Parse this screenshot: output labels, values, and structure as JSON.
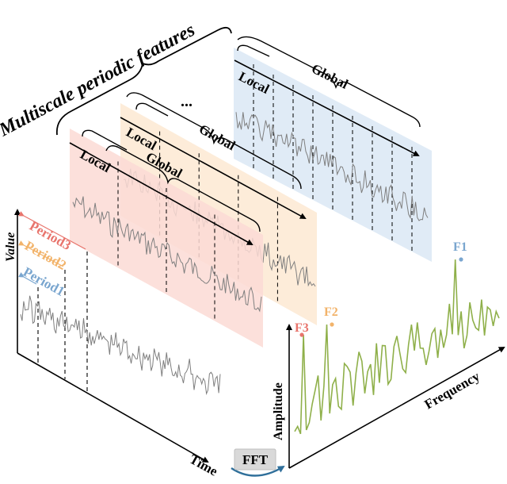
{
  "title": "Multiscale periodic features",
  "ellipsis": "...",
  "axes": {
    "value_label": "Value",
    "time_label": "Time",
    "amplitude_label": "Amplitude",
    "frequency_label": "Frequency"
  },
  "fft_label": "FFT",
  "periods": [
    {
      "label": "Period3",
      "color": "#e8746c"
    },
    {
      "label": "Period2",
      "color": "#f2b36a"
    },
    {
      "label": "Period1",
      "color": "#7aa6cf"
    }
  ],
  "frequencies": [
    {
      "label": "F1",
      "color": "#7aa6cf"
    },
    {
      "label": "F2",
      "color": "#f2b36a"
    },
    {
      "label": "F3",
      "color": "#e8746c"
    }
  ],
  "panels": [
    {
      "local_label": "Local",
      "global_label": "Global",
      "fill": "#fbdad5"
    },
    {
      "local_label": "Local",
      "global_label": "Global",
      "fill": "#fde9d2"
    },
    {
      "local_label": "Local",
      "global_label": "Global",
      "fill": "#dbe7f4"
    }
  ],
  "colors": {
    "series": "#7f7f7f",
    "spectrum": "#8fb04a",
    "arrow": "#2f6f9a"
  }
}
